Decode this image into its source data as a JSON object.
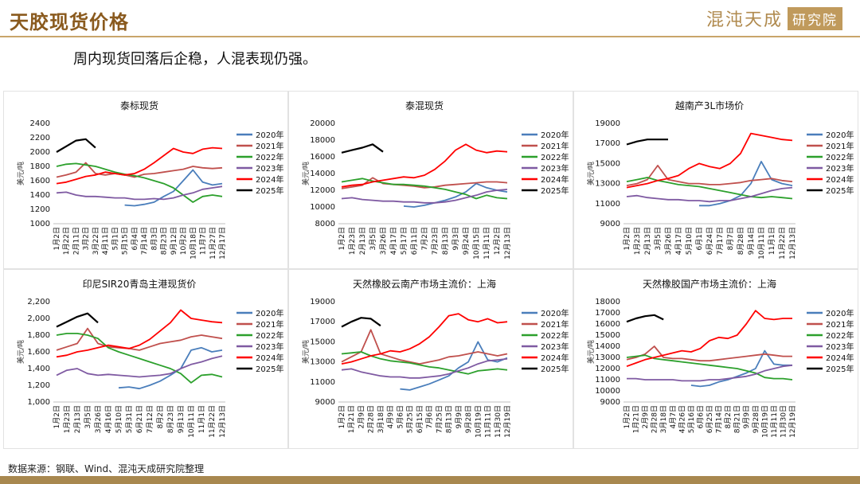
{
  "page": {
    "title": "天胶现货价格",
    "brand_text": "混沌天成",
    "brand_box": "研究院",
    "subtitle": "周内现货回落后企稳，人混表现仍强。",
    "source": "数据来源：钢联、Wind、混沌天成研究院整理"
  },
  "colors": {
    "2020年": "#4a7ebb",
    "2021年": "#c0504d",
    "2022年": "#2ca02c",
    "2023年": "#7f5aa2",
    "2024年": "#ff0000",
    "2025年": "#000000"
  },
  "chart_data": [
    {
      "type": "line",
      "title": "泰标现货",
      "ylabel": "美元/吨",
      "yticks": [
        "2400",
        "2200",
        "2000",
        "1800",
        "1600",
        "1400",
        "1200",
        "1000"
      ],
      "ylim": [
        1000,
        2400
      ],
      "xticks": [
        "1月2日",
        "1月22日",
        "2月11日",
        "3月2日",
        "3月22日",
        "4月11日",
        "5月1日",
        "5月15日",
        "6月4日",
        "7月14日",
        "8月3日",
        "8月23日",
        "9月12日",
        "10月2日",
        "10月18日",
        "11月7日",
        "11月27日",
        "12月17日"
      ],
      "legend": [
        "2020年",
        "2021年",
        "2022年",
        "2023年",
        "2024年",
        "2025年"
      ],
      "series": [
        {
          "name": "2020年",
          "values": [
            null,
            null,
            null,
            null,
            null,
            null,
            null,
            1260,
            1250,
            1270,
            1300,
            1380,
            1450,
            1600,
            1750,
            1580,
            1540,
            1560
          ]
        },
        {
          "name": "2021年",
          "values": [
            1650,
            1680,
            1720,
            1850,
            1700,
            1680,
            1700,
            1680,
            1650,
            1690,
            1700,
            1720,
            1740,
            1760,
            1800,
            1780,
            1770,
            1780
          ]
        },
        {
          "name": "2022年",
          "values": [
            1800,
            1830,
            1840,
            1820,
            1800,
            1760,
            1720,
            1690,
            1670,
            1640,
            1600,
            1560,
            1500,
            1400,
            1300,
            1380,
            1400,
            1380
          ]
        },
        {
          "name": "2023年",
          "values": [
            1430,
            1440,
            1400,
            1380,
            1380,
            1370,
            1360,
            1360,
            1340,
            1340,
            1350,
            1340,
            1360,
            1400,
            1430,
            1480,
            1500,
            1520
          ]
        },
        {
          "name": "2024年",
          "values": [
            1560,
            1580,
            1620,
            1660,
            1680,
            1720,
            1700,
            1680,
            1700,
            1760,
            1850,
            1950,
            2050,
            2000,
            1980,
            2040,
            2060,
            2050
          ]
        },
        {
          "name": "2025年",
          "values": [
            2000,
            2080,
            2160,
            2180,
            2060,
            null,
            null,
            null,
            null,
            null,
            null,
            null,
            null,
            null,
            null,
            null,
            null,
            null
          ]
        }
      ]
    },
    {
      "type": "line",
      "title": "泰混现货",
      "ylabel": "美元/吨",
      "yticks": [
        "20000",
        "18000",
        "16000",
        "14000",
        "12000",
        "10000",
        "8000"
      ],
      "ylim": [
        8000,
        20000
      ],
      "xticks": [
        "1月2日",
        "1月23日",
        "2月13日",
        "3月5日",
        "3月26日",
        "4月17日",
        "5月17日",
        "6月11日",
        "7月2日",
        "7月23日",
        "8月13日",
        "9月3日",
        "9月24日",
        "10月15日",
        "11月11日",
        "12月2日",
        "12月13日"
      ],
      "legend": [
        "2020年",
        "2021年",
        "2022年",
        "2023年",
        "2024年",
        "2025年"
      ],
      "series": [
        {
          "name": "2020年",
          "values": [
            null,
            null,
            null,
            null,
            null,
            null,
            10100,
            10000,
            10200,
            10500,
            10800,
            11200,
            11800,
            12800,
            12300,
            12000,
            11800
          ]
        },
        {
          "name": "2021年",
          "values": [
            12200,
            12400,
            12600,
            13500,
            12800,
            12700,
            12600,
            12500,
            12300,
            12400,
            12600,
            12700,
            12800,
            12900,
            13000,
            13000,
            12900
          ]
        },
        {
          "name": "2022年",
          "values": [
            13000,
            13200,
            13400,
            13100,
            12900,
            12700,
            12700,
            12600,
            12500,
            12300,
            12100,
            11800,
            11500,
            11000,
            11400,
            11100,
            11000
          ]
        },
        {
          "name": "2023年",
          "values": [
            11000,
            11100,
            10900,
            10800,
            10700,
            10700,
            10600,
            10600,
            10500,
            10500,
            10600,
            10800,
            11100,
            11400,
            11800,
            12000,
            12100
          ]
        },
        {
          "name": "2024年",
          "values": [
            12400,
            12600,
            12700,
            13000,
            13200,
            13400,
            13600,
            13500,
            13800,
            14500,
            15500,
            16800,
            17500,
            16800,
            16500,
            16700,
            16600
          ]
        },
        {
          "name": "2025年",
          "values": [
            16500,
            16800,
            17100,
            17500,
            16600,
            null,
            null,
            null,
            null,
            null,
            null,
            null,
            null,
            null,
            null,
            null,
            null
          ]
        }
      ]
    },
    {
      "type": "line",
      "title": "越南产3L市场价",
      "ylabel": "美元/吨",
      "yticks": [
        "19000",
        "17000",
        "15000",
        "13000",
        "11000",
        "9000"
      ],
      "ylim": [
        9000,
        19000
      ],
      "xticks": [
        "1月2日",
        "1月23日",
        "2月13日",
        "3月5日",
        "3月26日",
        "4月17日",
        "5月10日",
        "6月1日",
        "6月24日",
        "7月17日",
        "8月7日",
        "8月28日",
        "9月14日",
        "10月11日",
        "11月1日",
        "11月22日",
        "12月13日"
      ],
      "legend": [
        "2020年",
        "2021年",
        "2022年",
        "2023年",
        "2024年",
        "2025年"
      ],
      "series": [
        {
          "name": "2020年",
          "values": [
            null,
            null,
            null,
            null,
            null,
            null,
            null,
            10800,
            10800,
            11000,
            11300,
            11800,
            13000,
            15200,
            13400,
            13000,
            12800
          ]
        },
        {
          "name": "2021年",
          "values": [
            12800,
            13000,
            13400,
            14800,
            13400,
            13200,
            13000,
            13000,
            12900,
            12900,
            13000,
            13100,
            13300,
            13400,
            13500,
            13300,
            13200
          ]
        },
        {
          "name": "2022年",
          "values": [
            13200,
            13400,
            13600,
            13300,
            13100,
            12900,
            12800,
            12700,
            12500,
            12300,
            12100,
            11900,
            11700,
            11600,
            11700,
            11600,
            11500
          ]
        },
        {
          "name": "2023年",
          "values": [
            11700,
            11800,
            11600,
            11500,
            11400,
            11400,
            11300,
            11300,
            11200,
            11300,
            11300,
            11500,
            11700,
            12000,
            12300,
            12500,
            12600
          ]
        },
        {
          "name": "2024年",
          "values": [
            12600,
            12800,
            13000,
            13300,
            13500,
            13800,
            14500,
            15000,
            14700,
            14500,
            15000,
            16000,
            18000,
            17800,
            17600,
            17400,
            17300
          ]
        },
        {
          "name": "2025年",
          "values": [
            16900,
            17200,
            17400,
            17400,
            17400,
            null,
            null,
            null,
            null,
            null,
            null,
            null,
            null,
            null,
            null,
            null,
            null
          ]
        }
      ]
    },
    {
      "type": "line",
      "title": "印尼SIR20青岛主港现货价",
      "ylabel": "美元/吨",
      "yticks": [
        "2,200",
        "2,000",
        "1,800",
        "1,600",
        "1,400",
        "1,200",
        "1,000"
      ],
      "ylim": [
        1000,
        2200
      ],
      "xticks": [
        "1月2日",
        "1月23日",
        "2月13日",
        "3月5日",
        "3月26日",
        "4月16日",
        "5月10日",
        "5月31日",
        "6月21日",
        "7月12日",
        "8月2日",
        "8月23日",
        "9月13日",
        "10月11日",
        "11月1日",
        "11月22日",
        "12月13日"
      ],
      "legend": [
        "2020年",
        "2021年",
        "2022年",
        "2023年",
        "2024年",
        "2025年"
      ],
      "series": [
        {
          "name": "2020年",
          "values": [
            null,
            null,
            null,
            null,
            null,
            null,
            1170,
            1180,
            1160,
            1200,
            1250,
            1320,
            1400,
            1620,
            1650,
            1600,
            1620
          ]
        },
        {
          "name": "2021年",
          "values": [
            1620,
            1660,
            1700,
            1880,
            1700,
            1660,
            1650,
            1640,
            1620,
            1660,
            1700,
            1720,
            1740,
            1780,
            1800,
            1780,
            1760
          ]
        },
        {
          "name": "2022年",
          "values": [
            1800,
            1820,
            1820,
            1800,
            1760,
            1650,
            1600,
            1560,
            1520,
            1480,
            1440,
            1400,
            1340,
            1230,
            1320,
            1330,
            1300
          ]
        },
        {
          "name": "2023年",
          "values": [
            1320,
            1380,
            1400,
            1340,
            1320,
            1330,
            1320,
            1310,
            1300,
            1310,
            1320,
            1340,
            1400,
            1450,
            1480,
            1520,
            1550
          ]
        },
        {
          "name": "2024年",
          "values": [
            1540,
            1560,
            1600,
            1620,
            1650,
            1680,
            1660,
            1640,
            1680,
            1750,
            1850,
            1950,
            2100,
            2000,
            1980,
            1960,
            1950
          ]
        },
        {
          "name": "2025年",
          "values": [
            1900,
            1960,
            2020,
            2060,
            1950,
            null,
            null,
            null,
            null,
            null,
            null,
            null,
            null,
            null,
            null,
            null,
            null
          ]
        }
      ]
    },
    {
      "type": "line",
      "title": "天然橡胶云南产市场主流价：上海",
      "ylabel": "美元/吨",
      "yticks": [
        "19000",
        "17000",
        "15000",
        "13000",
        "11000",
        "9000"
      ],
      "ylim": [
        9000,
        19000
      ],
      "xticks": [
        "1月2日",
        "1月21日",
        "2月9日",
        "2月28日",
        "3月18日",
        "4月9日",
        "5月6日",
        "5月25日",
        "6月15日",
        "7月6日",
        "7月25日",
        "8月13日",
        "9月9日",
        "9月28日",
        "10月19日",
        "11月11日",
        "11月30日",
        "12月19日"
      ],
      "legend": [
        "2020年",
        "2021年",
        "2022年",
        "2023年",
        "2024年",
        "2025年"
      ],
      "series": [
        {
          "name": "2020年",
          "values": [
            null,
            null,
            null,
            null,
            null,
            null,
            10300,
            10200,
            10500,
            10800,
            11200,
            11600,
            12400,
            13000,
            15000,
            13200,
            13000,
            13400
          ]
        },
        {
          "name": "2021年",
          "values": [
            13000,
            13500,
            14000,
            16200,
            13800,
            13500,
            13200,
            13000,
            12800,
            13000,
            13200,
            13500,
            13600,
            13800,
            14000,
            13800,
            13600,
            13800
          ]
        },
        {
          "name": "2022年",
          "values": [
            13800,
            13900,
            14000,
            13600,
            13300,
            13100,
            13000,
            12900,
            12700,
            12500,
            12400,
            12200,
            12000,
            11800,
            12100,
            12200,
            12300,
            12200
          ]
        },
        {
          "name": "2023年",
          "values": [
            12200,
            12300,
            12000,
            11800,
            11600,
            11500,
            11500,
            11400,
            11400,
            11500,
            11600,
            11800,
            12100,
            12400,
            12800,
            13100,
            13200,
            13300
          ]
        },
        {
          "name": "2024年",
          "values": [
            12800,
            13000,
            13300,
            13600,
            13800,
            14100,
            14000,
            14300,
            14800,
            15500,
            16500,
            17600,
            17800,
            17200,
            17000,
            17300,
            16900,
            17000
          ]
        },
        {
          "name": "2025年",
          "values": [
            16500,
            17000,
            17400,
            17300,
            16600,
            null,
            null,
            null,
            null,
            null,
            null,
            null,
            null,
            null,
            null,
            null,
            null,
            null
          ]
        }
      ]
    },
    {
      "type": "line",
      "title": "天然橡胶国产市场主流价：上海",
      "ylabel": "美元/吨",
      "yticks": [
        "18000",
        "17000",
        "16000",
        "15000",
        "14000",
        "13000",
        "12000",
        "11000",
        "10000",
        "9000"
      ],
      "ylim": [
        9000,
        18000
      ],
      "xticks": [
        "1月2日",
        "1月21日",
        "2月9日",
        "2月28日",
        "3月18日",
        "4月7日",
        "4月26日",
        "5月16日",
        "6月6日",
        "6月25日",
        "7月14日",
        "8月2日",
        "8月21日",
        "9月9日",
        "9月28日",
        "10月19日",
        "11月11日",
        "11月30日",
        "12月19日"
      ],
      "legend": [
        "2020年",
        "2021年",
        "2022年",
        "2023年",
        "2024年",
        "2025年"
      ],
      "series": [
        {
          "name": "2020年",
          "values": [
            null,
            null,
            null,
            null,
            null,
            null,
            null,
            10500,
            10400,
            10500,
            10800,
            11000,
            11300,
            11600,
            12000,
            13600,
            12400,
            12300,
            12300
          ]
        },
        {
          "name": "2021年",
          "values": [
            12800,
            13000,
            13300,
            14000,
            13000,
            12900,
            12900,
            12800,
            12700,
            12700,
            12800,
            12900,
            13000,
            13100,
            13200,
            13300,
            13200,
            13100,
            13100
          ]
        },
        {
          "name": "2022年",
          "values": [
            13000,
            13100,
            13200,
            12900,
            12800,
            12700,
            12600,
            12500,
            12400,
            12300,
            12200,
            12100,
            12000,
            11800,
            11600,
            11200,
            11100,
            11100,
            11000
          ]
        },
        {
          "name": "2023年",
          "values": [
            11100,
            11100,
            11000,
            11000,
            11000,
            11000,
            10900,
            10900,
            10900,
            11000,
            11000,
            11100,
            11200,
            11300,
            11500,
            11800,
            12000,
            12200,
            12300
          ]
        },
        {
          "name": "2024年",
          "values": [
            12200,
            12500,
            12800,
            13000,
            13200,
            13400,
            13600,
            13500,
            13800,
            14500,
            14800,
            14700,
            15000,
            16000,
            17200,
            16500,
            16400,
            16500,
            16500
          ]
        },
        {
          "name": "2025年",
          "values": [
            16200,
            16500,
            16700,
            16800,
            16400,
            null,
            null,
            null,
            null,
            null,
            null,
            null,
            null,
            null,
            null,
            null,
            null,
            null,
            null
          ]
        }
      ]
    }
  ]
}
